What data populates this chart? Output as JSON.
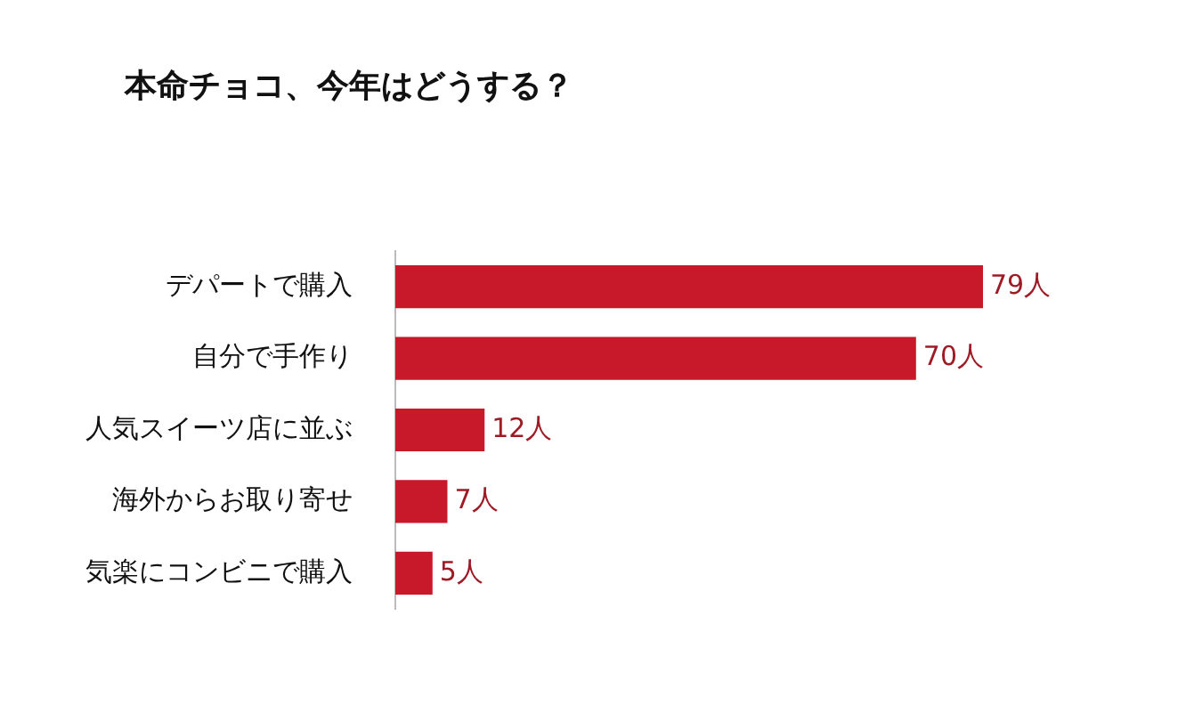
{
  "chart_data": {
    "type": "bar",
    "orientation": "horizontal",
    "title": "本命チョコ、今年はどうする？",
    "categories": [
      "デパートで購入",
      "自分で手作り",
      "人気スイーツ店に並ぶ",
      "海外からお取り寄せ",
      "気楽にコンビニで購入"
    ],
    "values": [
      79,
      70,
      12,
      7,
      5
    ],
    "color": "#c8192b",
    "value_labels": [
      "79人",
      "70人",
      "12人",
      "7人",
      "5人"
    ],
    "legend": false
  }
}
